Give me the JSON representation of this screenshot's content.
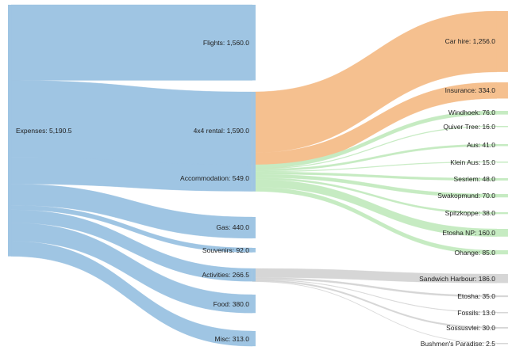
{
  "chart_data": {
    "type": "sankey",
    "title": "",
    "colors": {
      "expenses": "#9fc5e3",
      "car_hire": "#f5c08f",
      "accommodation": "#c6ebc2",
      "activities": "#d6d6d6"
    },
    "nodes": [
      {
        "id": "expenses",
        "label": "Expenses: 5,190.5",
        "value": 5190.5,
        "column": 0,
        "group": "expenses"
      },
      {
        "id": "flights",
        "label": "Flights: 1,560.0",
        "value": 1560.0,
        "column": 1,
        "group": "expenses"
      },
      {
        "id": "rental",
        "label": "4x4 rental: 1,590.0",
        "value": 1590.0,
        "column": 1,
        "group": "expenses"
      },
      {
        "id": "accommodation",
        "label": "Accommodation: 549.0",
        "value": 549.0,
        "column": 1,
        "group": "expenses"
      },
      {
        "id": "gas",
        "label": "Gas: 440.0",
        "value": 440.0,
        "column": 1,
        "group": "expenses"
      },
      {
        "id": "souvenirs",
        "label": "Souvenirs: 92.0",
        "value": 92.0,
        "column": 1,
        "group": "expenses"
      },
      {
        "id": "activities",
        "label": "Activities: 266.5",
        "value": 266.5,
        "column": 1,
        "group": "expenses"
      },
      {
        "id": "food",
        "label": "Food: 380.0",
        "value": 380.0,
        "column": 1,
        "group": "expenses"
      },
      {
        "id": "misc",
        "label": "Misc: 313.0",
        "value": 313.0,
        "column": 1,
        "group": "expenses"
      },
      {
        "id": "car_hire",
        "label": "Car hire: 1,256.0",
        "value": 1256.0,
        "column": 2,
        "group": "car_hire"
      },
      {
        "id": "insurance",
        "label": "Insurance: 334.0",
        "value": 334.0,
        "column": 2,
        "group": "car_hire"
      },
      {
        "id": "windhoek",
        "label": "Windhoek: 76.0",
        "value": 76.0,
        "column": 2,
        "group": "accommodation"
      },
      {
        "id": "quiver_tree",
        "label": "Quiver Tree: 16.0",
        "value": 16.0,
        "column": 2,
        "group": "accommodation"
      },
      {
        "id": "aus",
        "label": "Aus: 41.0",
        "value": 41.0,
        "column": 2,
        "group": "accommodation"
      },
      {
        "id": "klein_aus",
        "label": "Klein Aus: 15.0",
        "value": 15.0,
        "column": 2,
        "group": "accommodation"
      },
      {
        "id": "sesriem",
        "label": "Sesriem: 48.0",
        "value": 48.0,
        "column": 2,
        "group": "accommodation"
      },
      {
        "id": "swakopmund",
        "label": "Swakopmund: 70.0",
        "value": 70.0,
        "column": 2,
        "group": "accommodation"
      },
      {
        "id": "spitzkoppe",
        "label": "Spitzkoppe: 38.0",
        "value": 38.0,
        "column": 2,
        "group": "accommodation"
      },
      {
        "id": "etosha_np",
        "label": "Etosha NP: 160.0",
        "value": 160.0,
        "column": 2,
        "group": "accommodation"
      },
      {
        "id": "ohange",
        "label": "Ohange: 85.0",
        "value": 85.0,
        "column": 2,
        "group": "accommodation"
      },
      {
        "id": "sandwich_harbour",
        "label": "Sandwich Harbour: 186.0",
        "value": 186.0,
        "column": 2,
        "group": "activities"
      },
      {
        "id": "etosha",
        "label": "Etosha: 35.0",
        "value": 35.0,
        "column": 2,
        "group": "activities"
      },
      {
        "id": "fossils",
        "label": "Fossils: 13.0",
        "value": 13.0,
        "column": 2,
        "group": "activities"
      },
      {
        "id": "sossusvlei",
        "label": "Sossusvlei: 30.0",
        "value": 30.0,
        "column": 2,
        "group": "activities"
      },
      {
        "id": "bushmens_paradise",
        "label": "Bushmen's Paradise: 2.5",
        "value": 2.5,
        "column": 2,
        "group": "activities"
      }
    ],
    "links": [
      {
        "source": "expenses",
        "target": "flights",
        "value": 1560.0
      },
      {
        "source": "expenses",
        "target": "rental",
        "value": 1590.0
      },
      {
        "source": "expenses",
        "target": "accommodation",
        "value": 549.0
      },
      {
        "source": "expenses",
        "target": "gas",
        "value": 440.0
      },
      {
        "source": "expenses",
        "target": "souvenirs",
        "value": 92.0
      },
      {
        "source": "expenses",
        "target": "activities",
        "value": 266.5
      },
      {
        "source": "expenses",
        "target": "food",
        "value": 380.0
      },
      {
        "source": "expenses",
        "target": "misc",
        "value": 313.0
      },
      {
        "source": "rental",
        "target": "car_hire",
        "value": 1256.0
      },
      {
        "source": "rental",
        "target": "insurance",
        "value": 334.0
      },
      {
        "source": "accommodation",
        "target": "windhoek",
        "value": 76.0
      },
      {
        "source": "accommodation",
        "target": "quiver_tree",
        "value": 16.0
      },
      {
        "source": "accommodation",
        "target": "aus",
        "value": 41.0
      },
      {
        "source": "accommodation",
        "target": "klein_aus",
        "value": 15.0
      },
      {
        "source": "accommodation",
        "target": "sesriem",
        "value": 48.0
      },
      {
        "source": "accommodation",
        "target": "swakopmund",
        "value": 70.0
      },
      {
        "source": "accommodation",
        "target": "spitzkoppe",
        "value": 38.0
      },
      {
        "source": "accommodation",
        "target": "etosha_np",
        "value": 160.0
      },
      {
        "source": "accommodation",
        "target": "ohange",
        "value": 85.0
      },
      {
        "source": "activities",
        "target": "sandwich_harbour",
        "value": 186.0
      },
      {
        "source": "activities",
        "target": "etosha",
        "value": 35.0
      },
      {
        "source": "activities",
        "target": "fossils",
        "value": 13.0
      },
      {
        "source": "activities",
        "target": "sossusvlei",
        "value": 30.0
      },
      {
        "source": "activities",
        "target": "bushmens_paradise",
        "value": 2.5
      }
    ]
  }
}
